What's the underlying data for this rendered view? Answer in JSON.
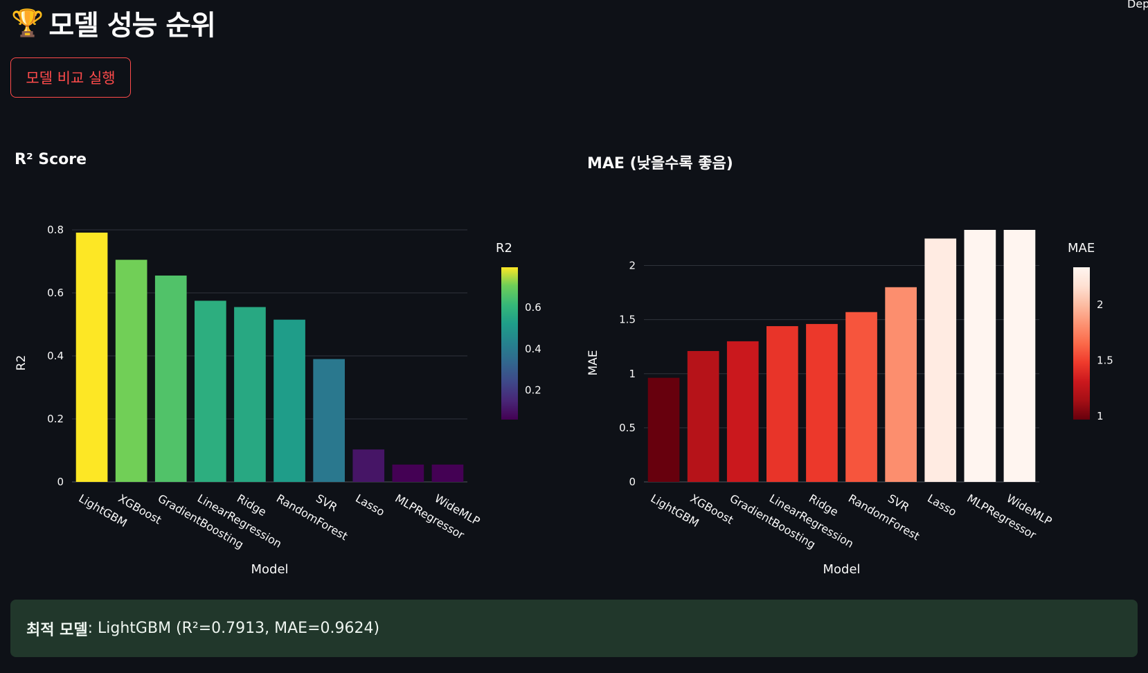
{
  "header": {
    "title": "모델 성능 순위",
    "trophy_icon": "🏆",
    "deploy_label": "Deploy",
    "compare_button": "모델 비교 실행"
  },
  "result": {
    "label": "최적 모델",
    "text": ": LightGBM (R²=0.7913, MAE=0.9624)"
  },
  "chart_data": [
    {
      "type": "bar",
      "title": "R² Score",
      "xlabel": "Model",
      "ylabel": "R2",
      "categories": [
        "LightGBM",
        "XGBoost",
        "GradientBoosting",
        "LinearRegression",
        "Ridge",
        "RandomForest",
        "SVR",
        "Lasso",
        "MLPRegressor",
        "WideMLP"
      ],
      "values": [
        0.7913,
        0.705,
        0.655,
        0.575,
        0.555,
        0.515,
        0.39,
        0.103,
        0.055,
        0.055
      ],
      "ylim": [
        0,
        0.8
      ],
      "yticks": [
        0,
        0.2,
        0.4,
        0.6,
        0.8
      ],
      "grid": true,
      "colorscale": "viridis",
      "colorbar": {
        "title": "R2",
        "ticks": [
          0.2,
          0.4,
          0.6
        ],
        "range": [
          0.055,
          0.7913
        ]
      }
    },
    {
      "type": "bar",
      "title": "MAE (낮을수록 좋음)",
      "xlabel": "Model",
      "ylabel": "MAE",
      "categories": [
        "LightGBM",
        "XGBoost",
        "GradientBoosting",
        "LinearRegression",
        "Ridge",
        "RandomForest",
        "SVR",
        "Lasso",
        "MLPRegressor",
        "WideMLP"
      ],
      "values": [
        0.9624,
        1.21,
        1.3,
        1.44,
        1.46,
        1.57,
        1.8,
        2.25,
        2.33,
        2.33
      ],
      "ylim": [
        0,
        2.33
      ],
      "yticks": [
        0,
        0.5,
        1,
        1.5,
        2
      ],
      "grid": true,
      "colorscale": "reds",
      "colorbar": {
        "title": "MAE",
        "ticks": [
          1,
          1.5,
          2
        ],
        "range": [
          0.9624,
          2.33
        ]
      }
    }
  ]
}
